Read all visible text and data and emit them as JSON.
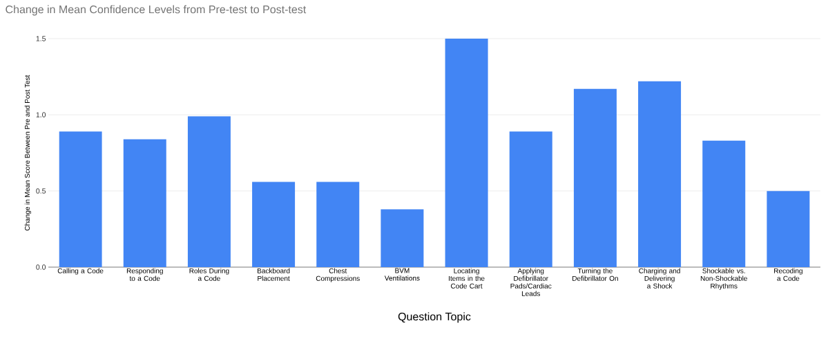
{
  "chart_data": {
    "type": "bar",
    "title": "Change in Mean Confidence Levels from Pre-test to Post-test",
    "xlabel": "Question Topic",
    "ylabel": "Change in Mean Score Between Pre and Post Test",
    "categories": [
      "Calling a Code",
      "Responding to a Code",
      "Roles During a Code",
      "Backboard Placement",
      "Chest Compressions",
      "BVM Ventilations",
      "Locating Items in the Code Cart",
      "Applying Defibrillator Pads/Cardiac Leads",
      "Turning the Defibrillator On",
      "Charging and Delivering a Shock",
      "Shockable vs. Non-Shockable Rhythms",
      "Recoding a Code"
    ],
    "values": [
      0.89,
      0.84,
      0.99,
      0.56,
      0.56,
      0.38,
      1.5,
      0.89,
      1.17,
      1.22,
      0.83,
      0.5
    ],
    "color": "#4285f4",
    "ylim": [
      0,
      1.5
    ],
    "yticks": [
      {
        "value": 0,
        "label": "0.0"
      },
      {
        "value": 0.5,
        "label": "0.5"
      },
      {
        "value": 1.0,
        "label": "1.0"
      },
      {
        "value": 1.5,
        "label": "1.5"
      }
    ],
    "grid": "y"
  }
}
